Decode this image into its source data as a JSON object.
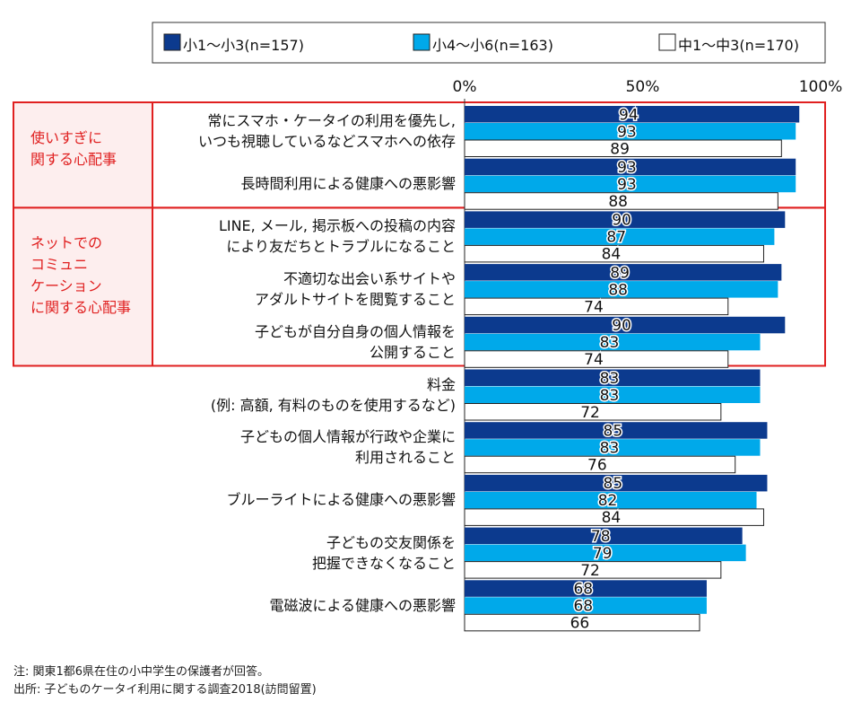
{
  "chart_data": {
    "type": "bar",
    "orientation": "horizontal",
    "categories": [
      "常にスマホ・ケータイの利用を優先し,\nいつも視聴しているなどスマホへの依存",
      "長時間利用による健康への悪影響",
      "LINE, メール, 掲示板への投稿の内容\nにより友だちとトラブルになること",
      "不適切な出会い系サイトや\nアダルトサイトを閲覧すること",
      "子どもが自分自身の個人情報を\n公開すること",
      "料金\n(例: 高額, 有料のものを使用するなど)",
      "子どもの個人情報が行政や企業に\n利用されること",
      "ブルーライトによる健康への悪影響",
      "子どもの交友関係を\n把握できなくなること",
      "電磁波による健康への悪影響"
    ],
    "groups": [
      {
        "label": "使いすぎに\n関する心配事"
      },
      {
        "label": "ネットでの\nコミュニ\nケーション\nに関する心配事"
      }
    ],
    "series": [
      {
        "name": "小1～小3(n=157)",
        "color": "#0c3a8e",
        "values": [
          94,
          93,
          90,
          89,
          90,
          83,
          85,
          85,
          78,
          68
        ]
      },
      {
        "name": "小4～小6(n=163)",
        "color": "#00a9ea",
        "values": [
          93,
          93,
          87,
          88,
          83,
          83,
          83,
          82,
          79,
          68
        ]
      },
      {
        "name": "中1～中3(n=170)",
        "color": "#ffffff",
        "values": [
          89,
          88,
          84,
          74,
          74,
          72,
          76,
          84,
          72,
          66
        ]
      }
    ],
    "xlim": [
      0,
      100
    ],
    "xticks": [
      {
        "value": 0,
        "label": "0%"
      },
      {
        "value": 50,
        "label": "50%"
      },
      {
        "value": 100,
        "label": "100%"
      }
    ],
    "grid": false,
    "legend": "top",
    "notes": [
      "注: 関東1都6県在住の小中学生の保護者が回答。",
      "出所: 子どものケータイ利用に関する調査2018(訪問留置)"
    ]
  }
}
